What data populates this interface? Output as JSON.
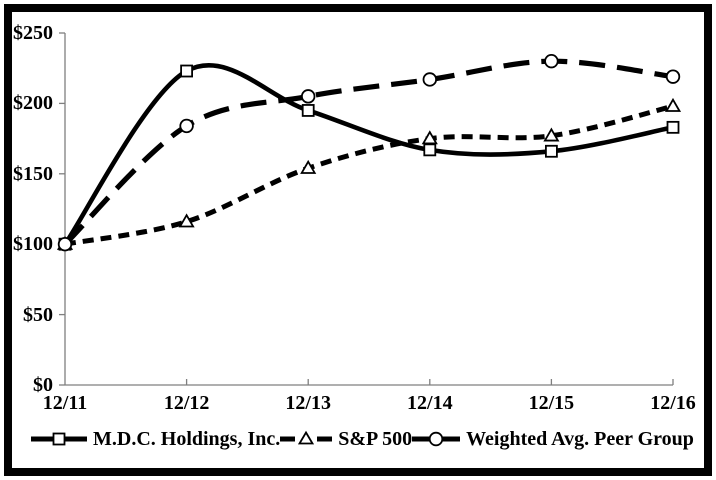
{
  "chart_data": {
    "type": "line",
    "title": "",
    "categories": [
      "12/11",
      "12/12",
      "12/13",
      "12/14",
      "12/15",
      "12/16"
    ],
    "series": [
      {
        "name": "M.D.C. Holdings, Inc.",
        "marker": "square",
        "line": "solid",
        "values": [
          100,
          223,
          195,
          167,
          166,
          183
        ]
      },
      {
        "name": "S&P 500",
        "marker": "triangle",
        "line": "short-dash",
        "values": [
          100,
          116,
          154,
          175,
          177,
          198
        ]
      },
      {
        "name": "Weighted Avg. Peer Group",
        "marker": "circle",
        "line": "long-dash",
        "values": [
          100,
          184,
          205,
          217,
          230,
          219
        ]
      }
    ],
    "y_axis": {
      "min": 0,
      "max": 250,
      "step": 50,
      "tick_labels": [
        "$0",
        "$50",
        "$100",
        "$150",
        "$200",
        "$250"
      ]
    },
    "x_axis": {
      "tick_labels": [
        "12/11",
        "12/12",
        "12/13",
        "12/14",
        "12/15",
        "12/16"
      ]
    },
    "legend_position": "bottom",
    "grid": false,
    "smoothed_lines": true,
    "colors": {
      "series": "#000000",
      "axis": "#7f7f7f",
      "background": "#ffffff",
      "border": "#000000"
    }
  }
}
